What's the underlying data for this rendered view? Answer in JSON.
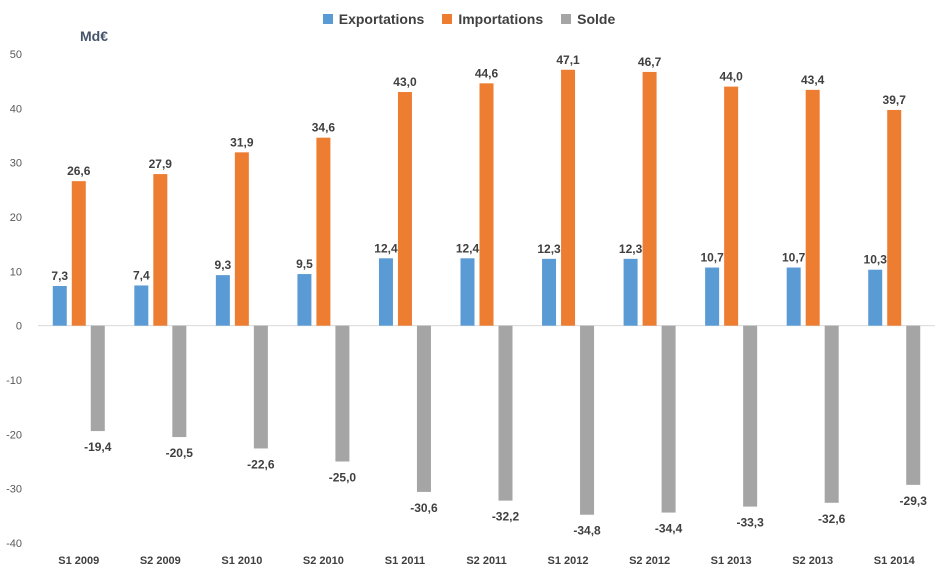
{
  "chart_data": {
    "type": "bar",
    "unit_label": "Md€",
    "categories": [
      "S1 2009",
      "S2 2009",
      "S1 2010",
      "S2 2010",
      "S1 2011",
      "S2 2011",
      "S1 2012",
      "S2 2012",
      "S1 2013",
      "S2 2013",
      "S1 2014"
    ],
    "series": [
      {
        "name": "Exportations",
        "color": "#5b9bd5",
        "values": [
          7.3,
          7.4,
          9.3,
          9.5,
          12.4,
          12.4,
          12.3,
          12.3,
          10.7,
          10.7,
          10.3
        ],
        "labels": [
          "7,3",
          "7,4",
          "9,3",
          "9,5",
          "12,4",
          "12,4",
          "12,3",
          "12,3",
          "10,7",
          "10,7",
          "10,3"
        ]
      },
      {
        "name": "Importations",
        "color": "#ed7d31",
        "values": [
          26.6,
          27.9,
          31.9,
          34.6,
          43.0,
          44.6,
          47.1,
          46.7,
          44.0,
          43.4,
          39.7
        ],
        "labels": [
          "26,6",
          "27,9",
          "31,9",
          "34,6",
          "43,0",
          "44,6",
          "47,1",
          "46,7",
          "44,0",
          "43,4",
          "39,7"
        ]
      },
      {
        "name": "Solde",
        "color": "#a5a5a5",
        "values": [
          -19.4,
          -20.5,
          -22.6,
          -25.0,
          -30.6,
          -32.2,
          -34.8,
          -34.4,
          -33.3,
          -32.6,
          -29.3
        ],
        "labels": [
          "-19,4",
          "-20,5",
          "-22,6",
          "-25,0",
          "-30,6",
          "-32,2",
          "-34,8",
          "-34,4",
          "-33,3",
          "-32,6",
          "-29,3"
        ]
      }
    ],
    "ylim": [
      -40,
      50
    ],
    "yticks": [
      50,
      40,
      30,
      20,
      10,
      0,
      -10,
      -20,
      -30,
      -40
    ],
    "ytick_labels": [
      "50",
      "40",
      "30",
      "20",
      "10",
      "0",
      "-10",
      "-20",
      "-30",
      "-40"
    ],
    "grid": false,
    "legend_position": "top-center"
  }
}
